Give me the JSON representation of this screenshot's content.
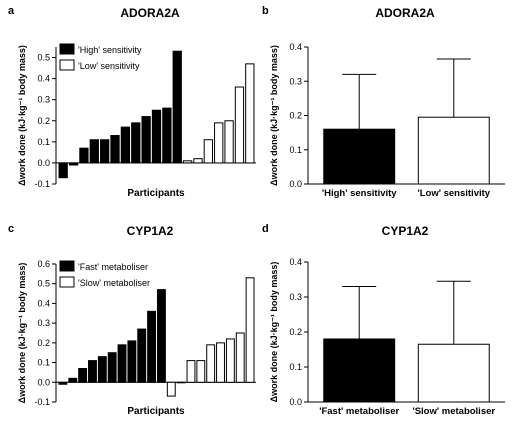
{
  "colors": {
    "bar_filled": "#000000",
    "bar_open": "#ffffff",
    "stroke": "#000000"
  },
  "chart_data": [
    {
      "panel_letter": "a",
      "type": "bar",
      "title": "ADORA2A",
      "xlabel": "Participants",
      "ylabel": "Δwork done (kJ·kg⁻¹ body mass)",
      "ylim": [
        -0.1,
        0.55
      ],
      "ytick_labels": [
        "-0.1",
        "0.0",
        "0.1",
        "0.2",
        "0.3",
        "0.4",
        "0.5"
      ],
      "grid": false,
      "legend_position": "top-left",
      "series": [
        {
          "name": "'High' sensitivity",
          "fill": "black",
          "values": [
            -0.07,
            -0.01,
            0.07,
            0.11,
            0.11,
            0.13,
            0.17,
            0.19,
            0.22,
            0.25,
            0.26,
            0.53
          ]
        },
        {
          "name": "'Low' sensitivity",
          "fill": "white",
          "values": [
            0.01,
            0.02,
            0.11,
            0.19,
            0.2,
            0.36,
            0.47
          ]
        }
      ]
    },
    {
      "panel_letter": "b",
      "type": "bar",
      "title": "ADORA2A",
      "xlabel": "",
      "ylabel": "Δwork done (kJ·kg⁻¹ body mass)",
      "ylim": [
        0,
        0.4
      ],
      "ytick_labels": [
        "0.0",
        "0.1",
        "0.2",
        "0.3",
        "0.4"
      ],
      "grid": false,
      "categories": [
        "'High' sensitivity",
        "'Low' sensitivity"
      ],
      "values": [
        0.16,
        0.195
      ],
      "error_upper": [
        0.32,
        0.365
      ],
      "fills": [
        "black",
        "white"
      ]
    },
    {
      "panel_letter": "c",
      "type": "bar",
      "title": "CYP1A2",
      "xlabel": "Participants",
      "ylabel": "Δwork done (kJ·kg⁻¹ body mass)",
      "ylim": [
        -0.1,
        0.6
      ],
      "ytick_labels": [
        "-0.1",
        "0.0",
        "0.1",
        "0.2",
        "0.3",
        "0.4",
        "0.5",
        "0.6"
      ],
      "grid": false,
      "legend_position": "top-left",
      "series": [
        {
          "name": "'Fast' metaboliser",
          "fill": "black",
          "values": [
            -0.01,
            0.02,
            0.07,
            0.11,
            0.13,
            0.15,
            0.19,
            0.21,
            0.27,
            0.36,
            0.47
          ]
        },
        {
          "name": "'Slow' metaboliser",
          "fill": "white",
          "values": [
            -0.07,
            0.0,
            0.11,
            0.11,
            0.19,
            0.2,
            0.22,
            0.25,
            0.53
          ]
        }
      ]
    },
    {
      "panel_letter": "d",
      "type": "bar",
      "title": "CYP1A2",
      "xlabel": "",
      "ylabel": "Δwork done (kJ·kg⁻¹ body mass)",
      "ylim": [
        0,
        0.4
      ],
      "ytick_labels": [
        "0.0",
        "0.1",
        "0.2",
        "0.3",
        "0.4"
      ],
      "grid": false,
      "categories": [
        "'Fast' metaboliser",
        "'Slow' metaboliser"
      ],
      "values": [
        0.18,
        0.165
      ],
      "error_upper": [
        0.33,
        0.345
      ],
      "fills": [
        "black",
        "white"
      ]
    }
  ]
}
